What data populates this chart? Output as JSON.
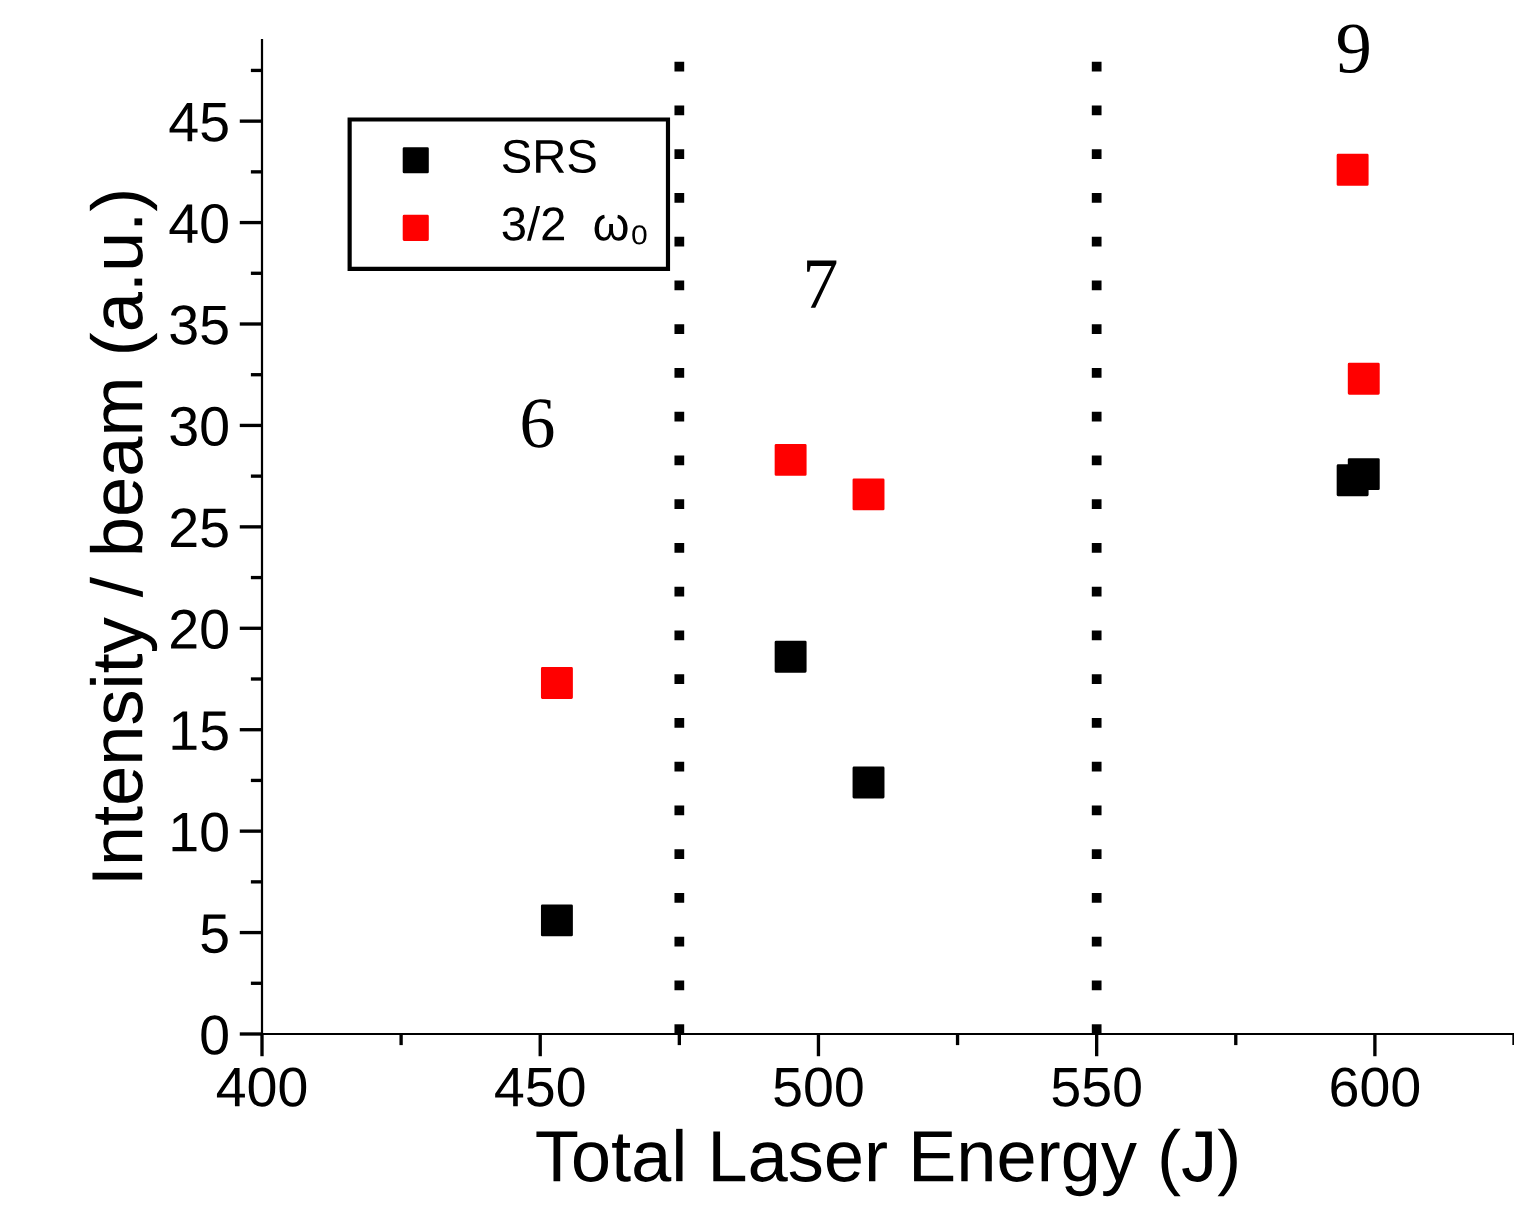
{
  "chart_data": {
    "type": "scatter",
    "xlabel": "Total Laser Energy (J)",
    "ylabel": "Intensity / beam (a.u.)",
    "xlim": [
      400,
      625
    ],
    "xticks": [
      400,
      450,
      500,
      550,
      600
    ],
    "ylim": [
      0,
      49
    ],
    "yticks": [
      0,
      5,
      10,
      15,
      20,
      25,
      30,
      35,
      40,
      45
    ],
    "series": [
      {
        "name": "SRS",
        "color": "#000000",
        "x": [
          453,
          495,
          509,
          596,
          598
        ],
        "values": [
          5.6,
          18.6,
          12.4,
          27.3,
          27.6
        ]
      },
      {
        "name": "3/2  ω₀",
        "color": "#ff0000",
        "x": [
          453,
          495,
          509,
          596,
          598
        ],
        "values": [
          17.3,
          28.3,
          26.6,
          42.6,
          32.3
        ]
      }
    ],
    "ref_lines": [
      {
        "axis": "x",
        "value": 475,
        "color": "#000000",
        "line_style": "dotted"
      },
      {
        "axis": "x",
        "value": 550,
        "color": "#000000",
        "line_style": "dotted"
      }
    ],
    "annotations": [
      "6",
      "7",
      "9"
    ],
    "marker": "square",
    "legend": "top left",
    "grid": false
  }
}
